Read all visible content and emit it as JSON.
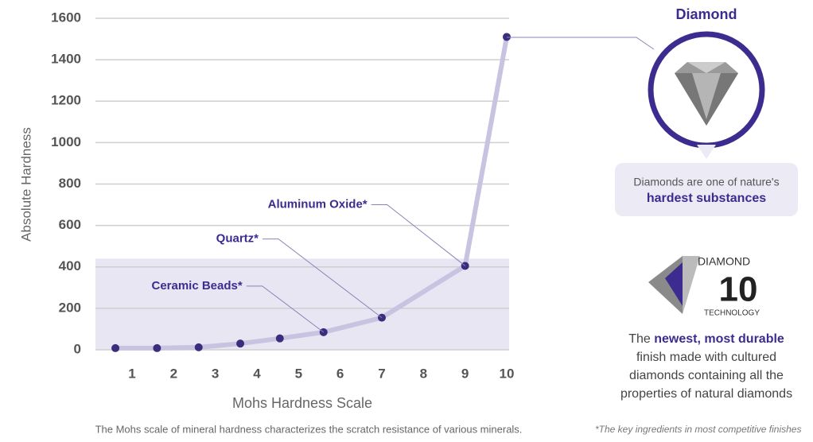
{
  "chart_data": {
    "type": "line",
    "xlabel": "Mohs Hardness Scale",
    "ylabel": "Absolute Hardness",
    "xlim": [
      0.1,
      10.1
    ],
    "xticks": [
      1,
      2,
      3,
      4,
      5,
      6,
      7,
      8,
      9,
      10
    ],
    "ylim": [
      0,
      1600
    ],
    "yticks": [
      0,
      200,
      400,
      600,
      800,
      1000,
      1200,
      1400,
      1600
    ],
    "grid": true,
    "highlight_band": [
      0,
      440
    ],
    "band_color": "#e9e6f3",
    "series": [
      {
        "color": "#c8c3e1",
        "marker_color": "#3b2c7e",
        "x": [
          0.6,
          1.6,
          2.6,
          3.6,
          4.55,
          5.6,
          7,
          9,
          10
        ],
        "values": [
          8,
          8,
          12,
          30,
          55,
          85,
          155,
          405,
          1510
        ]
      }
    ],
    "annotations": [
      {
        "text": "Ceramic Beads*",
        "x": 5.6,
        "y": 85
      },
      {
        "text": "Quartz*",
        "x": 7,
        "y": 155
      },
      {
        "text": "Aluminum Oxide*",
        "x": 9,
        "y": 405
      }
    ],
    "caption": "The Mohs scale of mineral hardness characterizes the scratch resistance of various minerals."
  },
  "panel": {
    "title": "Diamond",
    "callout": [
      "Diamonds are one of nature's",
      "hardest substances"
    ],
    "logo": {
      "top": "DIAMOND",
      "number": "10",
      "bottom": "TECHNOLOGY"
    },
    "body": [
      "The",
      "newest, most durable",
      "finish made with cultured",
      "diamonds containing all the",
      "properties of natural diamonds"
    ],
    "footnote": "*The key ingredients in most competitive finishes"
  }
}
